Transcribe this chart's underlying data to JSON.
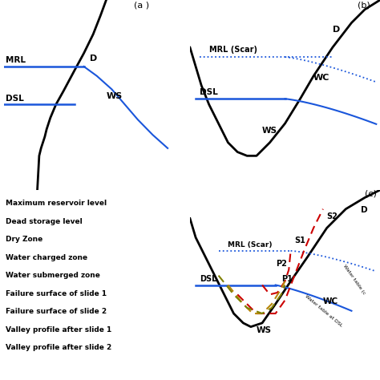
{
  "bg_color": "#ffffff",
  "title_a": "(a )",
  "title_b": "(b)",
  "title_c": "(c)",
  "legend_items": [
    "Maximum reservoir level",
    "Dead storage level",
    "Dry Zone",
    "Water charged zone",
    "Water submerged zone",
    "Failure surface of slide 1",
    "Failure surface of slide 2",
    "Valley profile after slide 1",
    "Valley profile after slide 2"
  ]
}
